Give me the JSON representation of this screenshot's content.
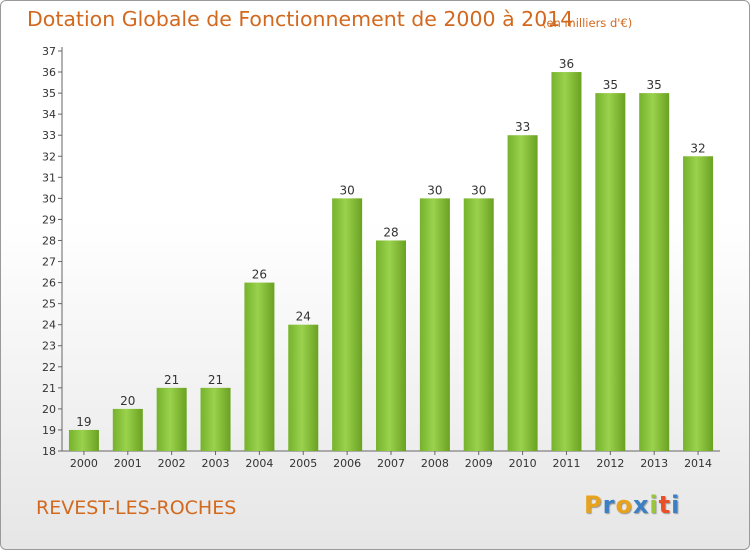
{
  "title": "Dotation Globale de Fonctionnement de 2000 à 2014",
  "subtitle": "(en milliers d'€)",
  "commune": "REVEST-LES-ROCHES",
  "logo": {
    "letters": [
      "P",
      "r",
      "o",
      "x",
      "i",
      "t",
      "i"
    ],
    "colors": [
      "#e8a21c",
      "#3b7fc4",
      "#e8a21c",
      "#3b7fc4",
      "#9bc53d",
      "#e8502a",
      "#3b7fc4"
    ]
  },
  "chart_data": {
    "type": "bar",
    "title": "Dotation Globale de Fonctionnement de 2000 à 2014",
    "subtitle": "(en milliers d'€)",
    "categories": [
      "2000",
      "2001",
      "2002",
      "2003",
      "2004",
      "2005",
      "2006",
      "2007",
      "2008",
      "2009",
      "2010",
      "2011",
      "2012",
      "2013",
      "2014"
    ],
    "values": [
      19,
      20,
      21,
      21,
      26,
      24,
      30,
      28,
      30,
      30,
      33,
      36,
      35,
      35,
      32
    ],
    "ylim": [
      18,
      37
    ],
    "yticks": [
      18,
      19,
      20,
      21,
      22,
      23,
      24,
      25,
      26,
      27,
      28,
      29,
      30,
      31,
      32,
      33,
      34,
      35,
      36,
      37
    ],
    "grid": false,
    "bar_color": "#8cc63f",
    "bar_color_dark": "#6aa121"
  }
}
